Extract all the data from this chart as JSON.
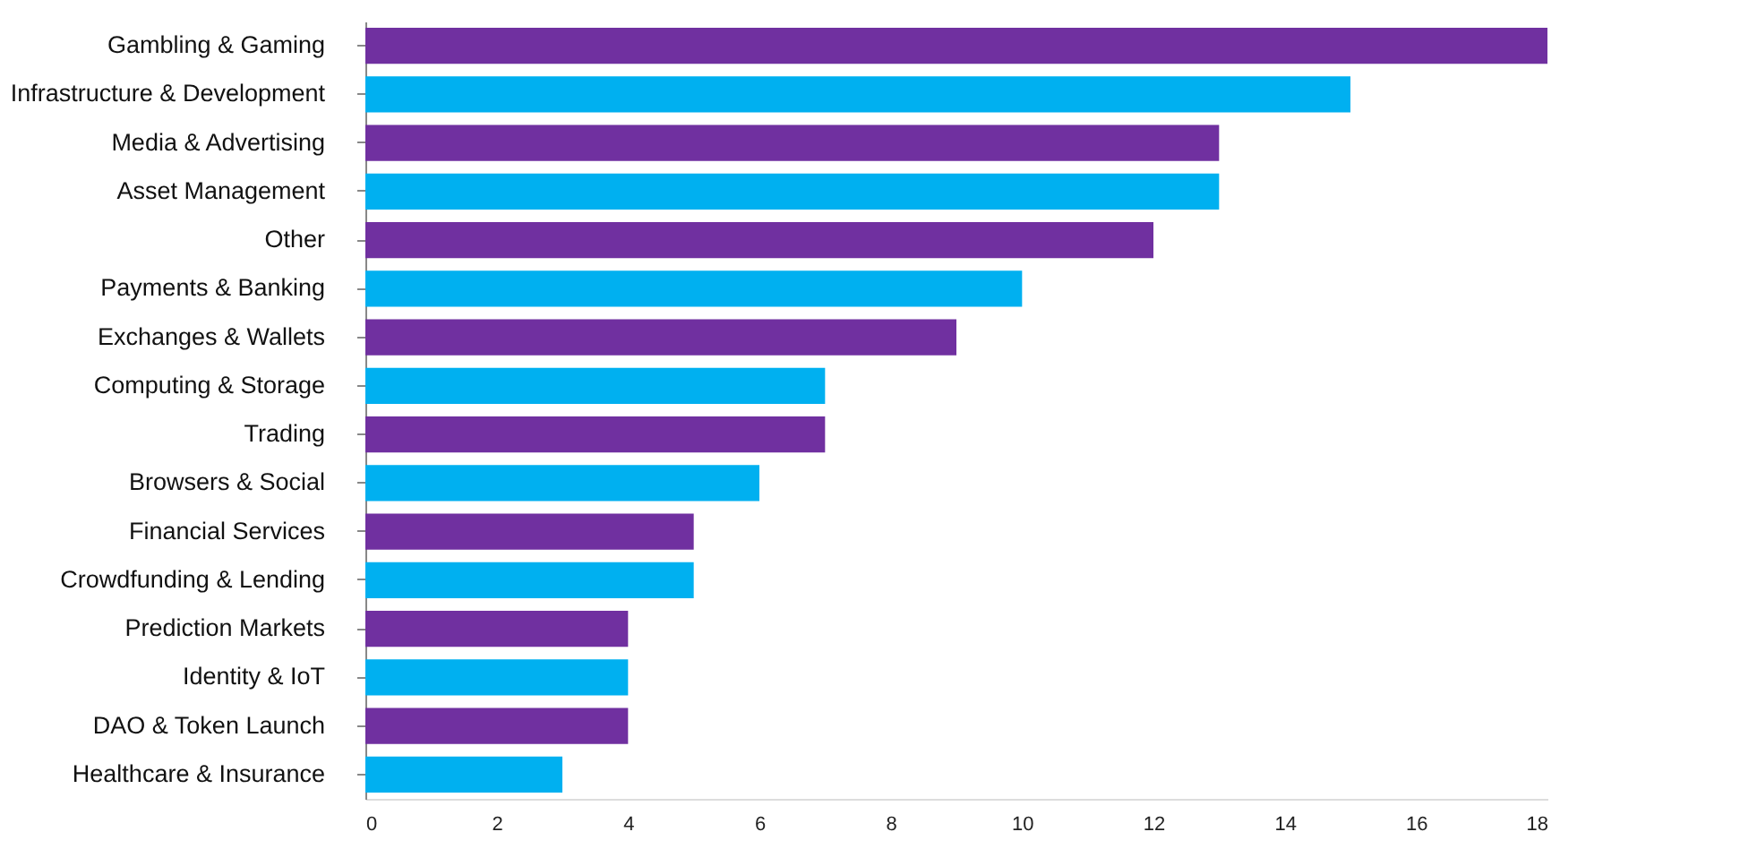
{
  "chart_data": {
    "type": "bar",
    "orientation": "horizontal",
    "categories": [
      "Gambling & Gaming",
      "Infrastructure & Development",
      "Media & Advertising",
      "Asset Management",
      "Other",
      "Payments & Banking",
      "Exchanges & Wallets",
      "Computing & Storage",
      "Trading",
      "Browsers & Social",
      "Financial Services",
      "Crowdfunding & Lending",
      "Prediction Markets",
      "Identity & IoT",
      "DAO & Token Launch",
      "Healthcare & Insurance"
    ],
    "values": [
      18,
      15,
      13,
      13,
      12,
      10,
      9,
      7,
      7,
      6,
      5,
      5,
      4,
      4,
      4,
      3
    ],
    "colors": [
      "#7030a0",
      "#00b0f0",
      "#7030a0",
      "#00b0f0",
      "#7030a0",
      "#00b0f0",
      "#7030a0",
      "#00b0f0",
      "#7030a0",
      "#00b0f0",
      "#7030a0",
      "#00b0f0",
      "#7030a0",
      "#00b0f0",
      "#7030a0",
      "#00b0f0"
    ],
    "xlim": [
      0,
      18
    ],
    "xticks": [
      0,
      2,
      4,
      6,
      8,
      10,
      12,
      14,
      16,
      18
    ],
    "grid": false
  }
}
